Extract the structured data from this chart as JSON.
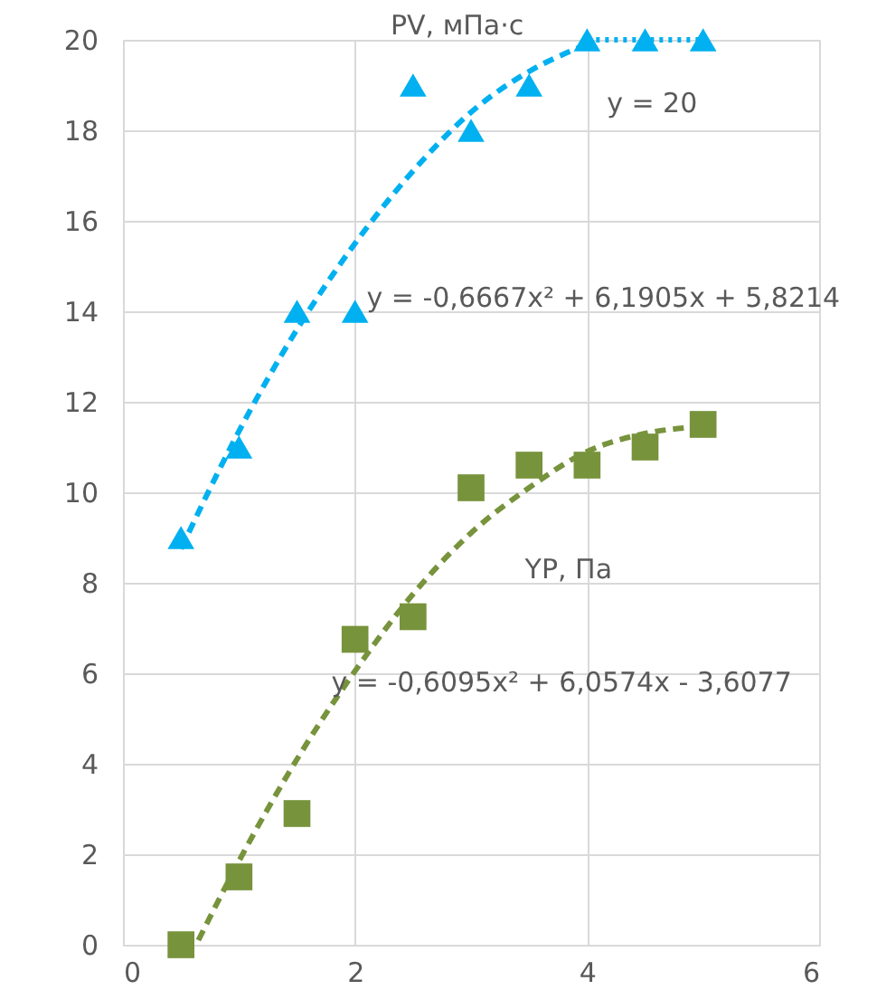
{
  "chart_data": {
    "type": "scatter",
    "xlim": [
      0,
      6
    ],
    "xticks": [
      0,
      2,
      4,
      6
    ],
    "ylim": [
      0,
      20
    ],
    "yticks": [
      0,
      2,
      4,
      6,
      8,
      10,
      12,
      14,
      16,
      18,
      20
    ],
    "grid": true,
    "legend": false,
    "annotations": [
      "y = -0,6667x² + 6,1905x + 5,8214",
      "y = 20",
      "y = -0,6095x² + 6,0574x - 3,6077"
    ],
    "series": [
      {
        "name": "PV, мПа·с",
        "marker": "triangle",
        "color": "#00b0f0",
        "x": [
          0.5,
          1,
          1.5,
          2,
          2.5,
          3,
          3.5,
          4,
          4.5,
          5
        ],
        "values": [
          9,
          11,
          14,
          14,
          19,
          18,
          19,
          20,
          20,
          20
        ]
      },
      {
        "name": "YP, Па",
        "marker": "square",
        "color": "#77933c",
        "x": [
          0.5,
          1,
          1.5,
          2,
          2.5,
          3,
          3.5,
          4,
          4.5,
          5
        ],
        "values": [
          0,
          1.5,
          2.9,
          6.75,
          7.25,
          10.1,
          10.6,
          10.6,
          11,
          11.5
        ]
      },
      {
        "type": "line",
        "line_style": "dashed",
        "color": "#00b0f0",
        "x": [
          0.5,
          1,
          1.5,
          2,
          2.5,
          3,
          3.5,
          4
        ],
        "values": [
          8.75,
          11.35,
          13.6,
          15.5,
          17.1,
          18.4,
          19.3,
          19.9
        ]
      },
      {
        "type": "line",
        "line_style": "dotted",
        "color": "#00b0f0",
        "x": [
          4,
          5
        ],
        "values": [
          20,
          20
        ]
      },
      {
        "type": "line",
        "line_style": "dashed",
        "color": "#77933c",
        "x": [
          0.65,
          1,
          1.5,
          2,
          2.5,
          3,
          3.5,
          4,
          4.5,
          5
        ],
        "values": [
          0.1,
          1.85,
          4.1,
          6.05,
          7.75,
          9.1,
          10.1,
          10.9,
          11.3,
          11.45
        ]
      }
    ]
  }
}
